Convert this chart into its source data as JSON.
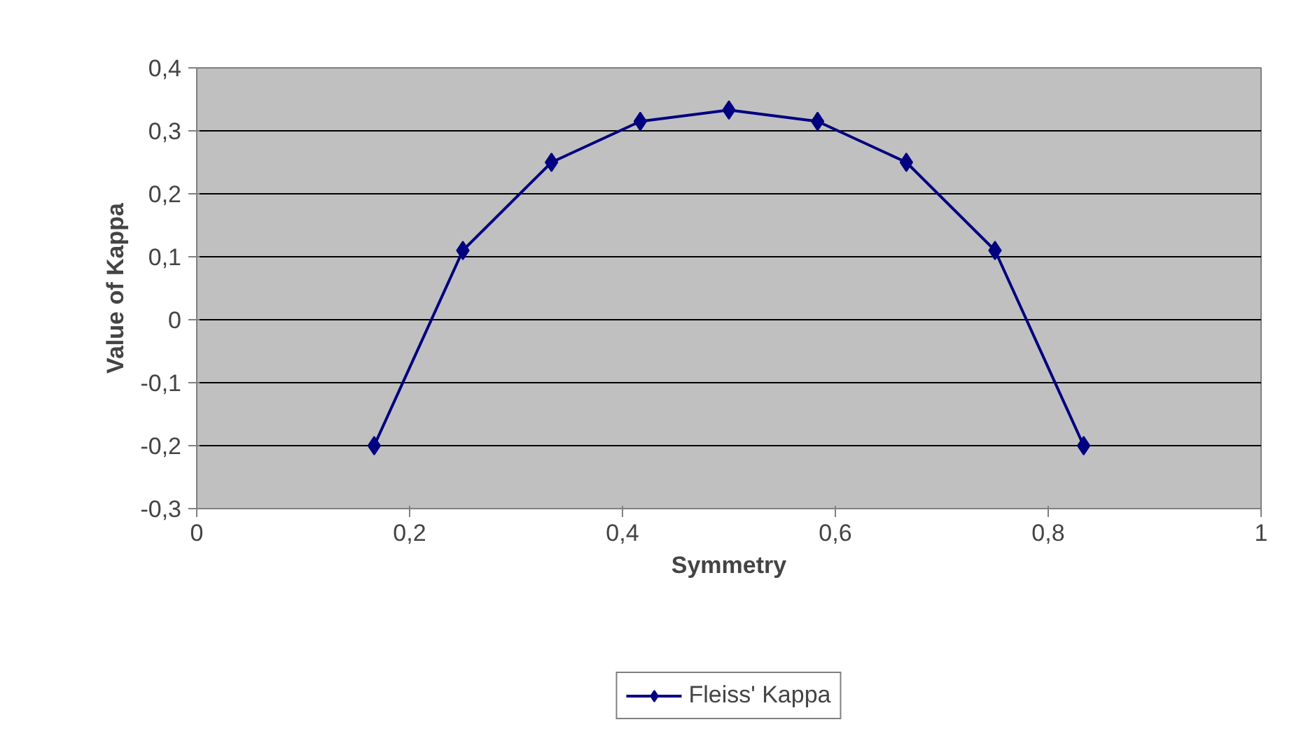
{
  "chart_data": {
    "type": "line",
    "xlabel": "Symmetry",
    "ylabel": "Value of Kappa",
    "x": [
      0.1667,
      0.25,
      0.3333,
      0.4167,
      0.5,
      0.5833,
      0.6667,
      0.75,
      0.8333
    ],
    "series": [
      {
        "name": "Fleiss' Kappa",
        "color": "#000080",
        "values": [
          -0.2,
          0.11,
          0.25,
          0.315,
          0.333,
          0.315,
          0.25,
          0.11,
          -0.2
        ]
      }
    ],
    "xlim": [
      0,
      1
    ],
    "ylim": [
      -0.3,
      0.4
    ],
    "xticks": [
      0,
      {
        "value": 0.2,
        "label": "0,2"
      },
      {
        "value": 0.4,
        "label": "0,4"
      },
      {
        "value": 0.6,
        "label": "0,6"
      },
      {
        "value": 0.8,
        "label": "0,8"
      },
      1
    ],
    "yticks": [
      {
        "value": -0.3,
        "label": "-0,3"
      },
      {
        "value": -0.2,
        "label": "-0,2"
      },
      {
        "value": -0.1,
        "label": "-0,1"
      },
      0,
      {
        "value": 0.1,
        "label": "0,1"
      },
      {
        "value": 0.2,
        "label": "0,2"
      },
      {
        "value": 0.3,
        "label": "0,3"
      },
      {
        "value": 0.4,
        "label": "0,4"
      }
    ],
    "grid": "y",
    "legend": "bottom",
    "marker": "diamond",
    "line_style": "solid"
  }
}
